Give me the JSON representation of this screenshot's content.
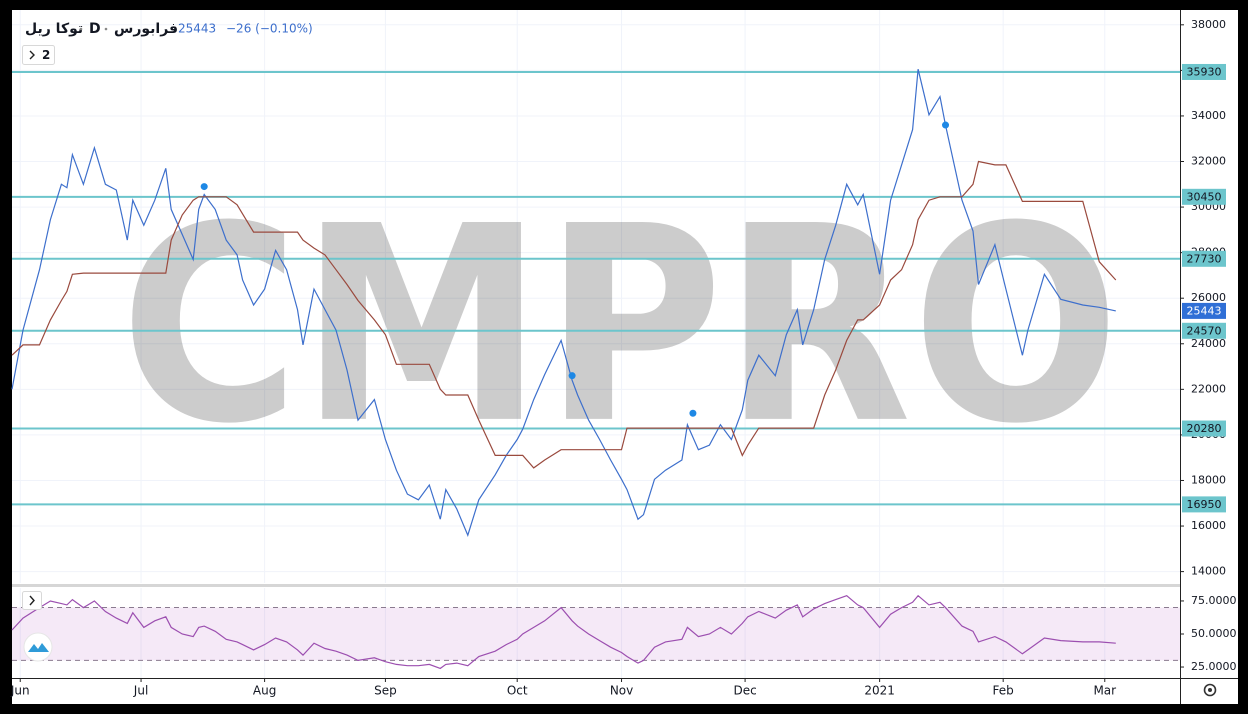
{
  "chart_data": {
    "type": "line",
    "symbol": "توکا ریل",
    "interval": "D",
    "exchange": "فرابورس",
    "last": 25443,
    "change": "−26 (−0.10%)",
    "collapsed_indicators": 2,
    "watermark": "CMPRO",
    "x": [
      0,
      2,
      5,
      7,
      9,
      10,
      11,
      13,
      15,
      17,
      19,
      21,
      22,
      24,
      26,
      28,
      29,
      31,
      33,
      34,
      35,
      37,
      39,
      41,
      42,
      44,
      46,
      48,
      50,
      52,
      53,
      55,
      57,
      59,
      61,
      63,
      66,
      68,
      70,
      72,
      74,
      76,
      78,
      79,
      81,
      83,
      85,
      88,
      90,
      92,
      93,
      95,
      97,
      100,
      102,
      103,
      105,
      107,
      109,
      111,
      112,
      114,
      115,
      117,
      119,
      122,
      123,
      125,
      127,
      129,
      131,
      133,
      134,
      136,
      139,
      141,
      143,
      144,
      146,
      148,
      150,
      152,
      154,
      155,
      158,
      160,
      162,
      164,
      165,
      167,
      169,
      170,
      173,
      175,
      176,
      179,
      181,
      184,
      185,
      188,
      191,
      195,
      198,
      201
    ],
    "xlim": [
      0,
      212.7
    ],
    "xticks": [
      {
        "value": 1.5,
        "label": "Jun"
      },
      {
        "value": 23.5,
        "label": "Jul"
      },
      {
        "value": 46,
        "label": "Aug"
      },
      {
        "value": 68,
        "label": "Sep"
      },
      {
        "value": 92,
        "label": "Oct"
      },
      {
        "value": 111,
        "label": "Nov"
      },
      {
        "value": 133.5,
        "label": "Dec"
      },
      {
        "value": 158,
        "label": "2021"
      },
      {
        "value": 180.5,
        "label": "Feb"
      },
      {
        "value": 199,
        "label": "Mar"
      }
    ],
    "ylim": [
      13500,
      38650
    ],
    "yticks": [
      14000,
      16000,
      18000,
      20000,
      22000,
      24000,
      26000,
      28000,
      30000,
      32000,
      34000,
      36000,
      38000
    ],
    "grid": true,
    "series": [
      {
        "color": "#3d6fcc",
        "values": [
          22000,
          24600,
          27250,
          29450,
          31000,
          30850,
          32300,
          31000,
          32600,
          31000,
          30750,
          28550,
          30300,
          29200,
          30300,
          31700,
          29900,
          28800,
          27700,
          29900,
          30550,
          29900,
          28550,
          27900,
          26800,
          25700,
          26400,
          28100,
          27250,
          25500,
          23950,
          26400,
          25500,
          24600,
          22850,
          20650,
          21550,
          19800,
          18450,
          17400,
          17150,
          17800,
          16300,
          17600,
          16750,
          15600,
          17150,
          18250,
          19100,
          19800,
          20250,
          21550,
          22650,
          24150,
          22400,
          21750,
          20650,
          19800,
          18900,
          18050,
          17600,
          16300,
          16500,
          18050,
          18450,
          18900,
          20450,
          19350,
          19550,
          20450,
          19800,
          21100,
          22400,
          23500,
          22600,
          24400,
          25500,
          23950,
          25500,
          27700,
          29200,
          31000,
          30100,
          30550,
          27050,
          30300,
          31850,
          33400,
          36050,
          34050,
          34850,
          33600,
          30300,
          28950,
          26600,
          28350,
          26400,
          23500,
          24600,
          27050,
          25950,
          25700,
          25600,
          25443
        ]
      },
      {
        "color": "#9a4a3e",
        "values": [
          23500,
          23950,
          23950,
          25050,
          25900,
          26300,
          27050,
          27100,
          27100,
          27100,
          27100,
          27100,
          27100,
          27100,
          27100,
          27100,
          28550,
          29650,
          30300,
          30450,
          30450,
          30450,
          30450,
          30100,
          29700,
          28900,
          28900,
          28900,
          28900,
          28900,
          28550,
          28200,
          27900,
          27250,
          26600,
          25900,
          25050,
          24400,
          23100,
          23100,
          23100,
          23100,
          22000,
          21750,
          21750,
          21750,
          20650,
          19100,
          19100,
          19100,
          19100,
          18550,
          18900,
          19350,
          19350,
          19350,
          19350,
          19350,
          19350,
          19350,
          20300,
          20300,
          20300,
          20300,
          20300,
          20300,
          20300,
          20300,
          20300,
          20300,
          20300,
          19100,
          19550,
          20300,
          20300,
          20300,
          20300,
          20300,
          20300,
          21750,
          22850,
          24150,
          25050,
          25050,
          25700,
          26800,
          27250,
          28350,
          29450,
          30300,
          30450,
          30450,
          30450,
          31000,
          32000,
          31850,
          31850,
          30250,
          30250,
          30250,
          30250,
          30250,
          27600,
          26800
        ]
      }
    ],
    "markers": {
      "color": "#1e88e5",
      "x": [
        35,
        102,
        124,
        170
      ],
      "values": [
        30900,
        22600,
        20950,
        33600
      ]
    },
    "levels": [
      35930,
      30450,
      27730,
      24570,
      20280,
      16950
    ],
    "level_color": "#6cc5cc",
    "rsi": {
      "type": "line",
      "color": "#9c4fb0",
      "ylim": [
        16.7,
        84.8
      ],
      "yticks": [
        {
          "value": 75,
          "label": "75.0000"
        },
        {
          "value": 50,
          "label": "50.0000"
        },
        {
          "value": 25,
          "label": "25.0000"
        }
      ],
      "band": [
        30,
        70
      ],
      "values": [
        53,
        62,
        70,
        75,
        73,
        72,
        76,
        70,
        75,
        67,
        62,
        58,
        66,
        55,
        60,
        63,
        55,
        50,
        48,
        55,
        56,
        52,
        46,
        44,
        42,
        38,
        42,
        47,
        44,
        38,
        34,
        43,
        39,
        37,
        34,
        30,
        32,
        29,
        27,
        26,
        26,
        27,
        24,
        27,
        28,
        26,
        33,
        37,
        42,
        46,
        50,
        55,
        60,
        70,
        60,
        56,
        50,
        45,
        40,
        36,
        33,
        28,
        30,
        40,
        44,
        46,
        55,
        48,
        50,
        55,
        50,
        58,
        63,
        67,
        62,
        68,
        72,
        63,
        69,
        73,
        76,
        79,
        72,
        70,
        55,
        65,
        70,
        74,
        79,
        72,
        74,
        70,
        56,
        52,
        44,
        48,
        44,
        35,
        38,
        47,
        45,
        44,
        44,
        43
      ]
    }
  }
}
